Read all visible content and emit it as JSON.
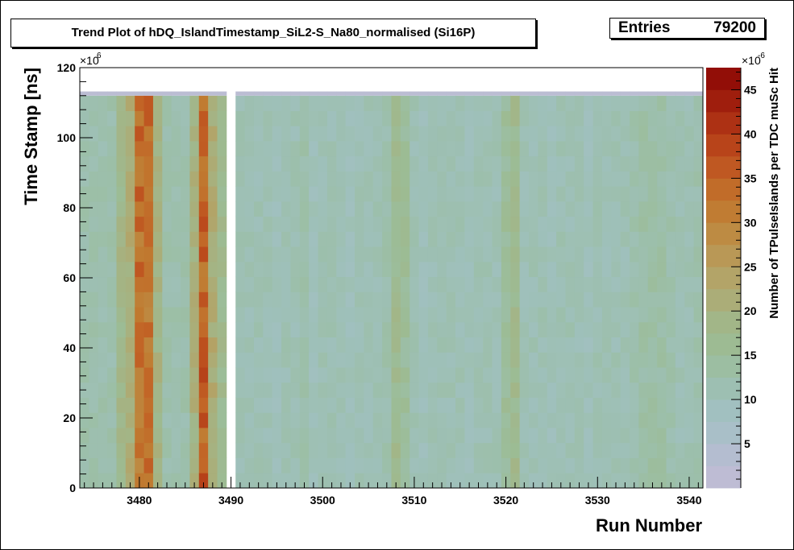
{
  "chart_data": {
    "type": "heatmap",
    "title": "Trend Plot of hDQ_IslandTimestamp_SiL2-S_Na80_normalised (Si16P)",
    "stats": {
      "label": "Entries",
      "value": "79200"
    },
    "xlabel": "Run Number",
    "ylabel": "Time Stamp [ns]",
    "zlabel": "Number of TPulseIslands per TDC muSc Hit",
    "xlim": [
      3473.5,
      3541.5
    ],
    "ylim": [
      0,
      120
    ],
    "y_exponent": "×10",
    "y_exponent_power": "6",
    "z_exponent": "×10",
    "z_exponent_power": "-6",
    "zlim": [
      0,
      47.5
    ],
    "x_ticks": [
      3480,
      3490,
      3500,
      3510,
      3520,
      3530,
      3540
    ],
    "y_ticks": [
      0,
      20,
      40,
      60,
      80,
      100,
      120
    ],
    "z_ticks": [
      5,
      10,
      15,
      20,
      25,
      30,
      35,
      40,
      45
    ],
    "timestamp_max": 112,
    "missing_runs": [
      3490
    ],
    "column_means": [
      {
        "run": 3474,
        "value": 12
      },
      {
        "run": 3475,
        "value": 12
      },
      {
        "run": 3476,
        "value": 12
      },
      {
        "run": 3477,
        "value": 12
      },
      {
        "run": 3478,
        "value": 18
      },
      {
        "run": 3479,
        "value": 21
      },
      {
        "run": 3480,
        "value": 33
      },
      {
        "run": 3481,
        "value": 33
      },
      {
        "run": 3482,
        "value": 19
      },
      {
        "run": 3483,
        "value": 12
      },
      {
        "run": 3484,
        "value": 12
      },
      {
        "run": 3485,
        "value": 12
      },
      {
        "run": 3486,
        "value": 20
      },
      {
        "run": 3487,
        "value": 35
      },
      {
        "run": 3488,
        "value": 22
      },
      {
        "run": 3489,
        "value": 17
      },
      {
        "run": 3491,
        "value": 11
      },
      {
        "run": 3492,
        "value": 11
      },
      {
        "run": 3493,
        "value": 11
      },
      {
        "run": 3494,
        "value": 11
      },
      {
        "run": 3495,
        "value": 10
      },
      {
        "run": 3496,
        "value": 11
      },
      {
        "run": 3497,
        "value": 11
      },
      {
        "run": 3498,
        "value": 12
      },
      {
        "run": 3499,
        "value": 10
      },
      {
        "run": 3500,
        "value": 11
      },
      {
        "run": 3501,
        "value": 11
      },
      {
        "run": 3502,
        "value": 11
      },
      {
        "run": 3503,
        "value": 10
      },
      {
        "run": 3504,
        "value": 11
      },
      {
        "run": 3505,
        "value": 11
      },
      {
        "run": 3506,
        "value": 11
      },
      {
        "run": 3507,
        "value": 12
      },
      {
        "run": 3508,
        "value": 17
      },
      {
        "run": 3509,
        "value": 15
      },
      {
        "run": 3510,
        "value": 11
      },
      {
        "run": 3511,
        "value": 10
      },
      {
        "run": 3512,
        "value": 11
      },
      {
        "run": 3513,
        "value": 11
      },
      {
        "run": 3514,
        "value": 11
      },
      {
        "run": 3515,
        "value": 11
      },
      {
        "run": 3516,
        "value": 10
      },
      {
        "run": 3517,
        "value": 11
      },
      {
        "run": 3518,
        "value": 11
      },
      {
        "run": 3519,
        "value": 11
      },
      {
        "run": 3520,
        "value": 15
      },
      {
        "run": 3521,
        "value": 17
      },
      {
        "run": 3522,
        "value": 11
      },
      {
        "run": 3523,
        "value": 11
      },
      {
        "run": 3524,
        "value": 11
      },
      {
        "run": 3525,
        "value": 10
      },
      {
        "run": 3526,
        "value": 11
      },
      {
        "run": 3527,
        "value": 11
      },
      {
        "run": 3528,
        "value": 11
      },
      {
        "run": 3529,
        "value": 10
      },
      {
        "run": 3530,
        "value": 11
      },
      {
        "run": 3531,
        "value": 11
      },
      {
        "run": 3532,
        "value": 11
      },
      {
        "run": 3533,
        "value": 11
      },
      {
        "run": 3534,
        "value": 12
      },
      {
        "run": 3535,
        "value": 13
      },
      {
        "run": 3536,
        "value": 13
      },
      {
        "run": 3537,
        "value": 13
      },
      {
        "run": 3538,
        "value": 12
      },
      {
        "run": 3539,
        "value": 11
      },
      {
        "run": 3540,
        "value": 11
      },
      {
        "run": 3541,
        "value": 12
      }
    ],
    "palette": [
      "#c4bcd6",
      "#b6bdd2",
      "#a9bfc8",
      "#9fc0bd",
      "#9cbfa9",
      "#9cbc95",
      "#a3b587",
      "#aeaa72",
      "#b79d5d",
      "#bd8c45",
      "#c07a30",
      "#c26426",
      "#bb4a1c",
      "#ad3214",
      "#9c1a0b",
      "#8c0704"
    ],
    "grid": false,
    "legend": "color-scale-right"
  }
}
